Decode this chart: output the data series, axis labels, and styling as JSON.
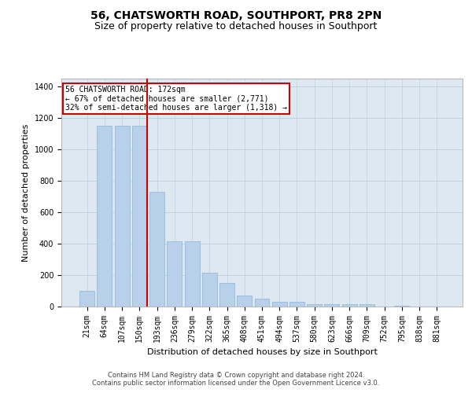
{
  "title": "56, CHATSWORTH ROAD, SOUTHPORT, PR8 2PN",
  "subtitle": "Size of property relative to detached houses in Southport",
  "xlabel": "Distribution of detached houses by size in Southport",
  "ylabel": "Number of detached properties",
  "categories": [
    "21sqm",
    "64sqm",
    "107sqm",
    "150sqm",
    "193sqm",
    "236sqm",
    "279sqm",
    "322sqm",
    "365sqm",
    "408sqm",
    "451sqm",
    "494sqm",
    "537sqm",
    "580sqm",
    "623sqm",
    "666sqm",
    "709sqm",
    "752sqm",
    "795sqm",
    "838sqm",
    "881sqm"
  ],
  "values": [
    100,
    1150,
    1150,
    1150,
    730,
    415,
    415,
    215,
    150,
    70,
    48,
    32,
    30,
    15,
    15,
    15,
    14,
    0,
    6,
    0,
    0
  ],
  "bar_color": "#b8d0ea",
  "bar_edgecolor": "#8ab4d8",
  "highlight_index": 3,
  "highlight_color": "#cc0000",
  "ylim": [
    0,
    1450
  ],
  "yticks": [
    0,
    200,
    400,
    600,
    800,
    1000,
    1200,
    1400
  ],
  "annotation_text": "56 CHATSWORTH ROAD: 172sqm\n← 67% of detached houses are smaller (2,771)\n32% of semi-detached houses are larger (1,318) →",
  "annotation_box_edgecolor": "#cc0000",
  "footer_line1": "Contains HM Land Registry data © Crown copyright and database right 2024.",
  "footer_line2": "Contains public sector information licensed under the Open Government Licence v3.0.",
  "background_color": "#ffffff",
  "plot_bg_color": "#dde8f0",
  "grid_color": "#c0d0e0",
  "title_fontsize": 10,
  "subtitle_fontsize": 9,
  "axis_label_fontsize": 8,
  "tick_fontsize": 7,
  "footer_fontsize": 6
}
